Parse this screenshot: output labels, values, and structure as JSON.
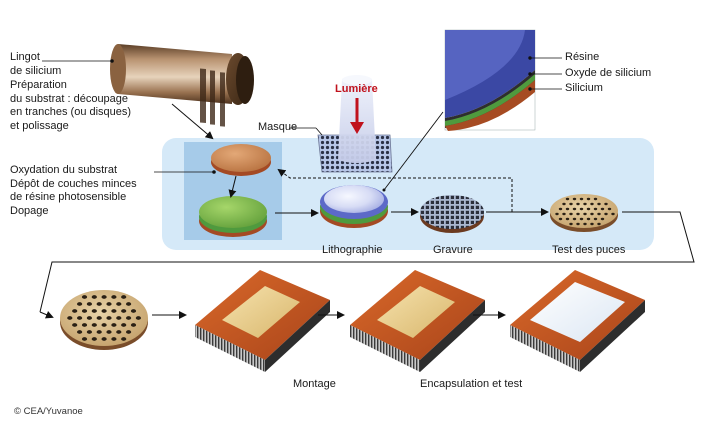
{
  "labels": {
    "lingot": "Lingot\nde silicium",
    "preparation": "Préparation\ndu substrat : découpage\nen tranches (ou disques)\net polissage",
    "oxydation": "Oxydation du substrat\nDépôt de couches minces\nde résine photosensible\nDopage",
    "masque": "Masque",
    "lumiere": "Lumière",
    "resine": "Résine",
    "oxyde": "Oxyde de silicium",
    "silicium": "Silicium",
    "lithographie": "Lithographie",
    "gravure": "Gravure",
    "test_puces": "Test des puces",
    "montage": "Montage",
    "encapsulation": "Encapsulation et test",
    "credit": "© CEA/Yuvanoe"
  },
  "colors": {
    "panel": "#d5e9f8",
    "column": "#a6cbe9",
    "arrow_red": "#c0121d",
    "resine": "#3f4c9e",
    "oxyde": "#4f9a3e",
    "silicium": "#a64b22",
    "wafer_copper": "#c9834d",
    "chip_orange": "#c1541e",
    "chip_gold": "#e9cf8d"
  }
}
